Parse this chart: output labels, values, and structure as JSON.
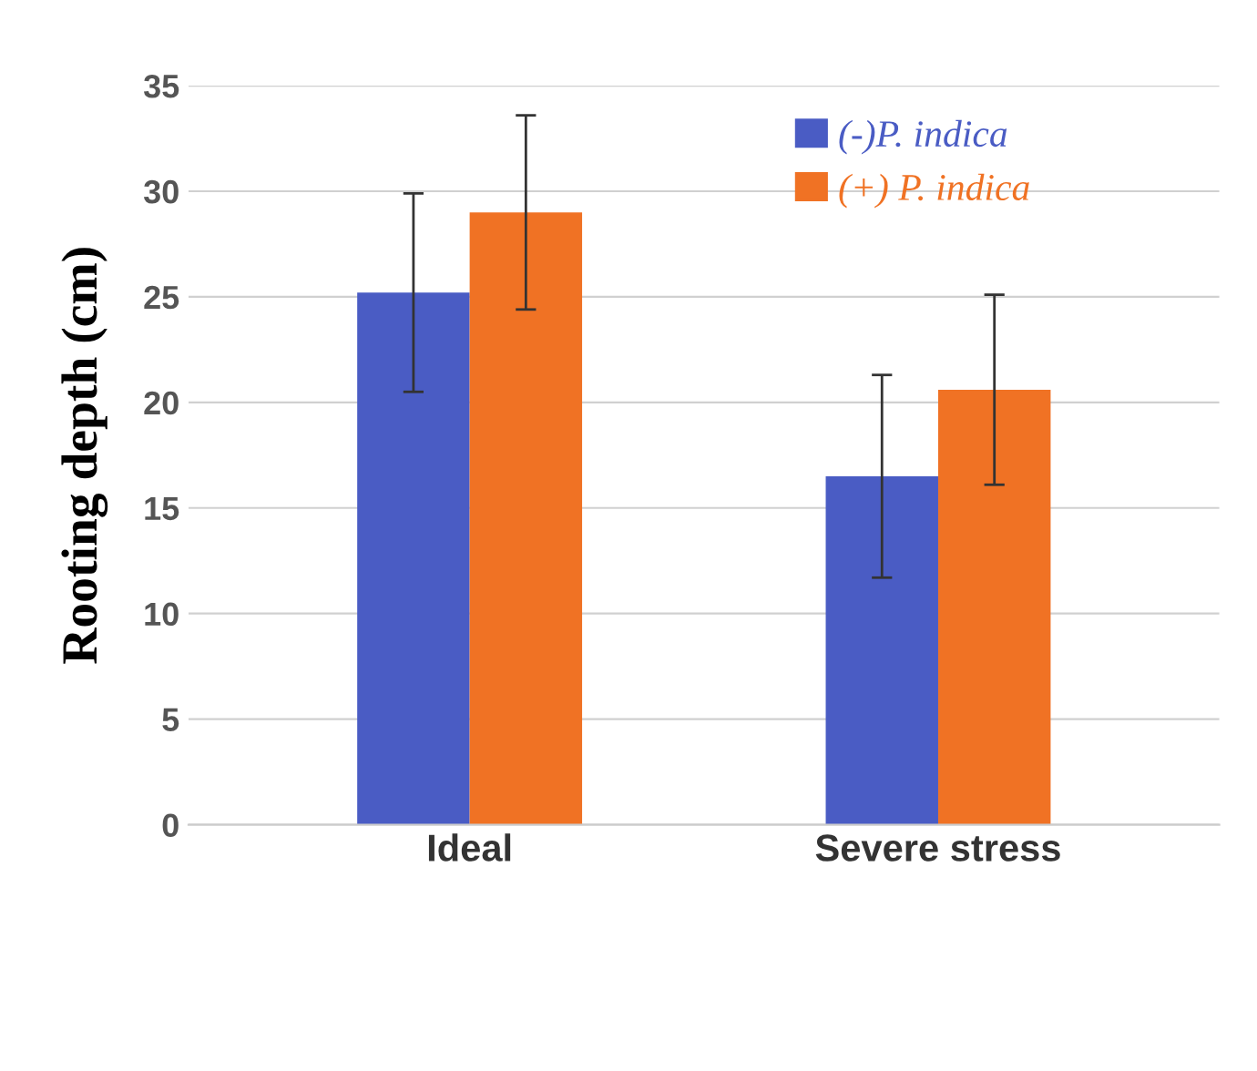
{
  "chart_data": {
    "type": "bar",
    "ylabel": "Rooting depth (cm)",
    "categories": [
      "Ideal",
      "Severe stress"
    ],
    "series": [
      {
        "name": "(-)P. indica",
        "color": "#4a5cc4",
        "values": [
          25.2,
          16.5
        ],
        "errors": [
          4.7,
          4.8
        ]
      },
      {
        "name": "(+) P. indica",
        "color": "#f07224",
        "values": [
          29.0,
          20.6
        ],
        "errors": [
          4.6,
          4.5
        ]
      }
    ],
    "ylim": [
      0,
      35
    ],
    "yticks": [
      0,
      5,
      10,
      15,
      20,
      25,
      30,
      35
    ],
    "grid": "y",
    "legend": "top right"
  }
}
